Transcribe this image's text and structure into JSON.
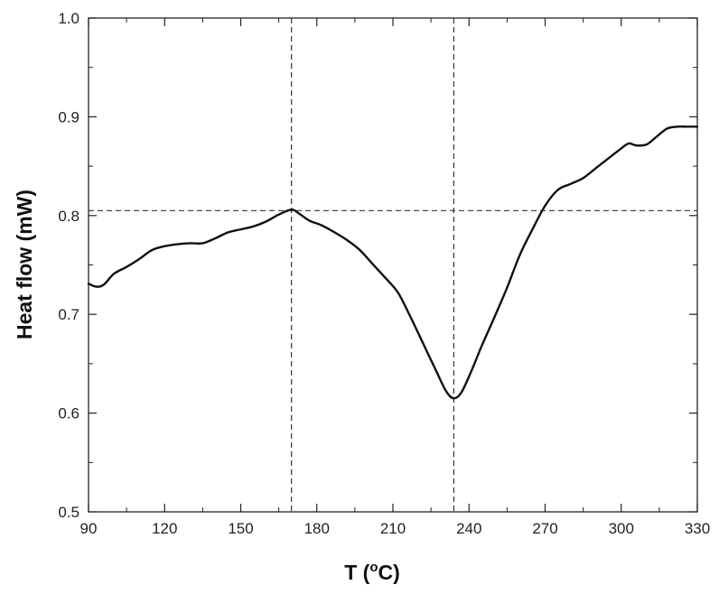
{
  "chart_data": {
    "type": "line",
    "title": "",
    "xlabel": "T (",
    "xlabel_sup": "o",
    "xlabel_suffix": "C)",
    "ylabel": "Heat flow (mW)",
    "xlim": [
      90,
      330
    ],
    "ylim": [
      0.5,
      1.0
    ],
    "xticks": [
      90,
      120,
      150,
      180,
      210,
      240,
      270,
      300,
      330
    ],
    "xtick_labels": [
      "90",
      "120",
      "150",
      "180",
      "210",
      "240",
      "270",
      "300",
      "330"
    ],
    "yticks": [
      0.5,
      0.6,
      0.7,
      0.8,
      0.9,
      1.0
    ],
    "ytick_labels": [
      "0.5",
      "0.6",
      "0.7",
      "0.8",
      "0.9",
      "1.0"
    ],
    "grid": false,
    "reference_lines": {
      "vertical_x": [
        170,
        234
      ],
      "horizontal_y": [
        0.805
      ]
    },
    "series": [
      {
        "x": [
          90,
          93,
          96,
          100,
          105,
          110,
          115,
          120,
          125,
          130,
          135,
          140,
          145,
          150,
          155,
          160,
          165,
          170,
          173,
          177,
          182,
          187,
          192,
          197,
          202,
          207,
          212,
          217,
          222,
          227,
          231,
          234,
          237,
          241,
          245,
          250,
          255,
          260,
          265,
          270,
          275,
          280,
          285,
          290,
          295,
          300,
          303,
          306,
          310,
          314,
          318,
          322,
          326,
          330
        ],
        "y": [
          0.731,
          0.728,
          0.73,
          0.741,
          0.748,
          0.756,
          0.765,
          0.769,
          0.771,
          0.772,
          0.772,
          0.777,
          0.783,
          0.786,
          0.789,
          0.794,
          0.801,
          0.806,
          0.802,
          0.795,
          0.79,
          0.783,
          0.775,
          0.765,
          0.751,
          0.737,
          0.722,
          0.697,
          0.67,
          0.643,
          0.622,
          0.615,
          0.621,
          0.643,
          0.668,
          0.697,
          0.727,
          0.76,
          0.786,
          0.81,
          0.826,
          0.832,
          0.838,
          0.848,
          0.858,
          0.868,
          0.873,
          0.871,
          0.872,
          0.88,
          0.888,
          0.89,
          0.89,
          0.89
        ],
        "color": "#111111"
      }
    ]
  }
}
